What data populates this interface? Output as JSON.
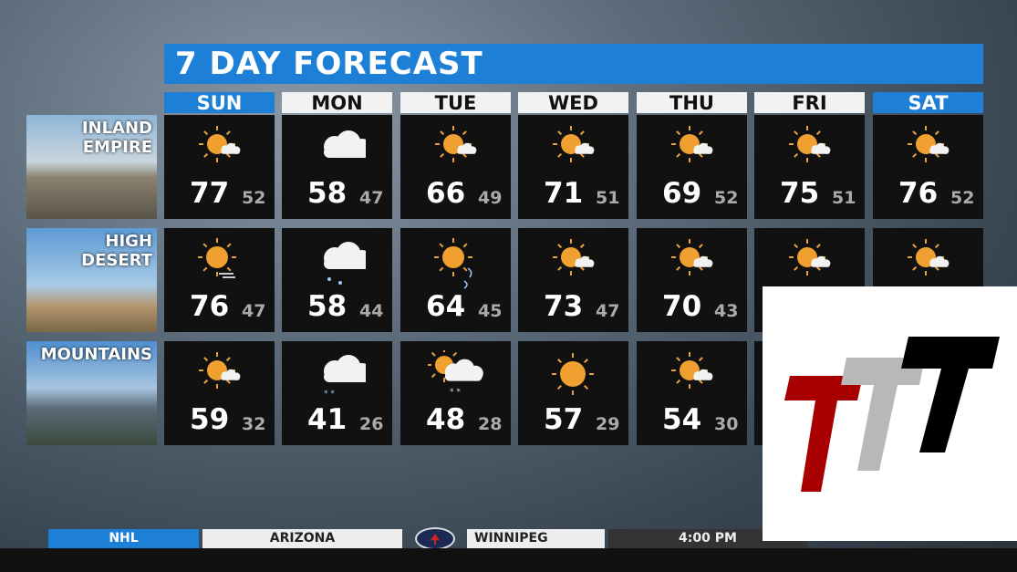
{
  "title": "7 DAY FORECAST",
  "days": [
    "SUN",
    "MON",
    "TUE",
    "WED",
    "THU",
    "FRI",
    "SAT"
  ],
  "weekend": [
    true,
    false,
    false,
    false,
    false,
    false,
    true
  ],
  "rows": [
    {
      "region": "INLAND EMPIRE",
      "region_lines": [
        "INLAND",
        "EMPIRE"
      ],
      "cells": [
        {
          "icon": "sun-cloud",
          "hi": "77",
          "lo": "52"
        },
        {
          "icon": "cloud",
          "hi": "58",
          "lo": "47"
        },
        {
          "icon": "sun-cloud",
          "hi": "66",
          "lo": "49"
        },
        {
          "icon": "sun-cloud",
          "hi": "71",
          "lo": "51"
        },
        {
          "icon": "sun-cloud",
          "hi": "69",
          "lo": "52"
        },
        {
          "icon": "sun-cloud",
          "hi": "75",
          "lo": "51"
        },
        {
          "icon": "sun-cloud",
          "hi": "76",
          "lo": "52"
        }
      ]
    },
    {
      "region": "HIGH DESERT",
      "region_lines": [
        "HIGH",
        "DESERT"
      ],
      "cells": [
        {
          "icon": "sun-haze",
          "hi": "76",
          "lo": "47"
        },
        {
          "icon": "cloud-rain",
          "hi": "58",
          "lo": "44"
        },
        {
          "icon": "sun-wind",
          "hi": "64",
          "lo": "45"
        },
        {
          "icon": "sun-cloud",
          "hi": "73",
          "lo": "47"
        },
        {
          "icon": "sun-cloud",
          "hi": "70",
          "lo": "43"
        },
        {
          "icon": "sun-cloud",
          "hi": "",
          "lo": ""
        },
        {
          "icon": "sun-cloud",
          "hi": "",
          "lo": ""
        }
      ]
    },
    {
      "region": "MOUNTAINS",
      "region_lines": [
        "MOUNTAINS",
        ""
      ],
      "cells": [
        {
          "icon": "sun-cloud",
          "hi": "59",
          "lo": "32"
        },
        {
          "icon": "cloud-snow",
          "hi": "41",
          "lo": "26"
        },
        {
          "icon": "sun-cloud-snow",
          "hi": "48",
          "lo": "28"
        },
        {
          "icon": "sun",
          "hi": "57",
          "lo": "29"
        },
        {
          "icon": "sun-cloud",
          "hi": "54",
          "lo": "30"
        },
        {
          "icon": "",
          "hi": "",
          "lo": ""
        },
        {
          "icon": "",
          "hi": "",
          "lo": ""
        }
      ]
    }
  ],
  "ticker": {
    "league": "NHL",
    "away": "ARIZONA",
    "home": "WINNIPEG",
    "time": "4:00 PM"
  },
  "colors": {
    "accent": "#1e7fd6",
    "sun": "#f0a030",
    "logo_red": "#a80000",
    "logo_gray": "#b8b8b8",
    "logo_black": "#000000"
  }
}
